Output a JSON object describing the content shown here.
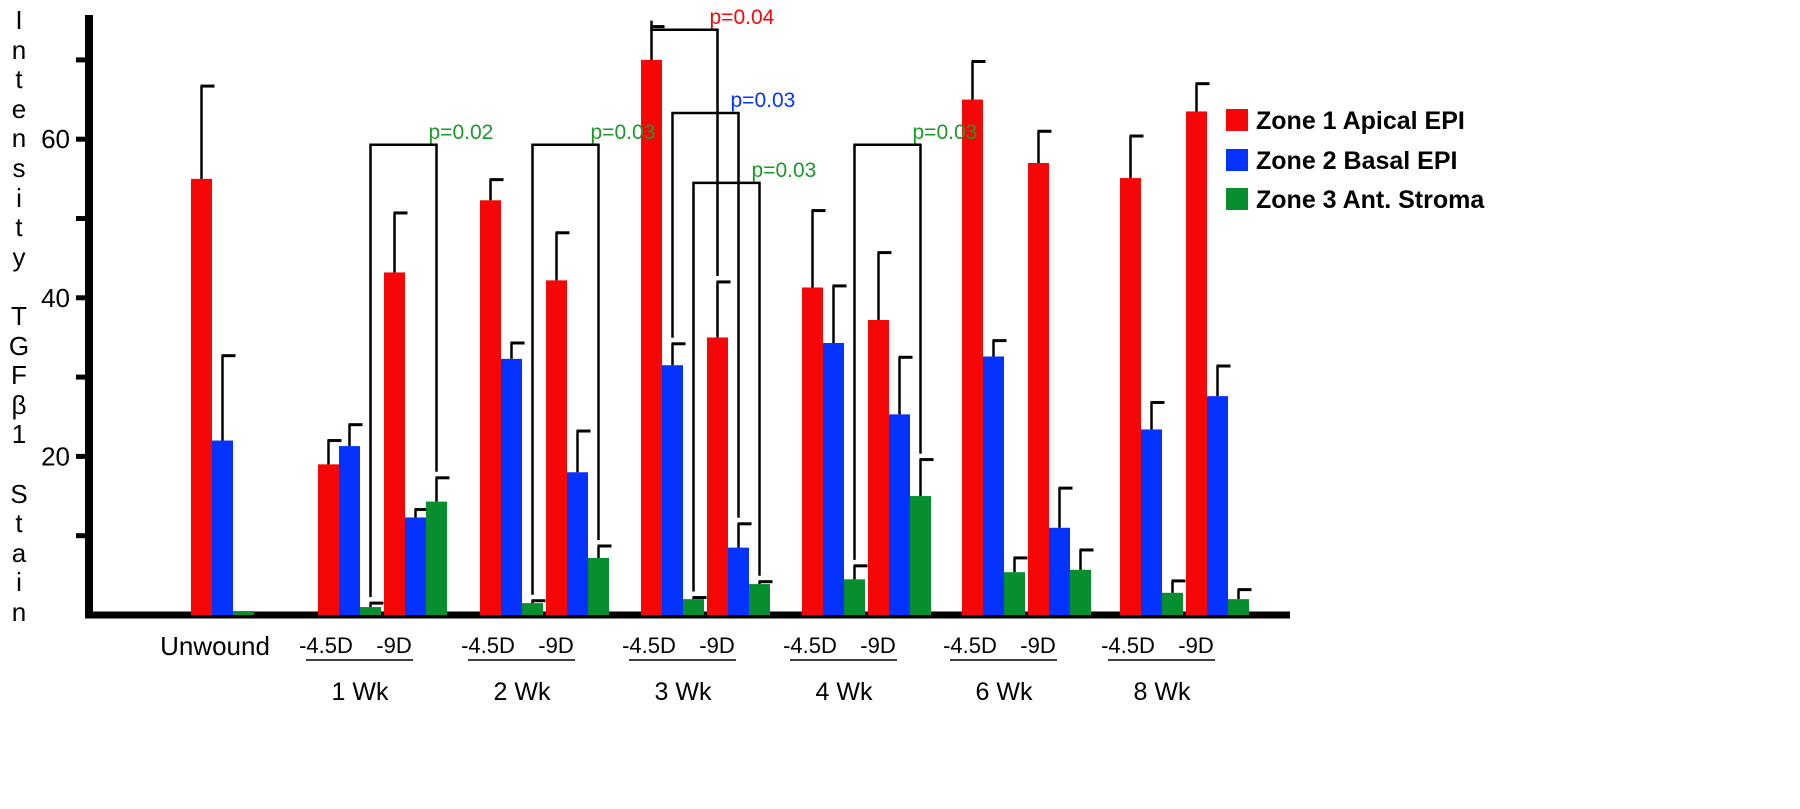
{
  "chart_data": {
    "type": "bar",
    "title": "",
    "ylabel": "Intensity TGFβ1 Stain",
    "xlabel": "",
    "ylim": [
      0,
      75
    ],
    "yticks": [
      10,
      20,
      30,
      40,
      50,
      60,
      70
    ],
    "ytick_labels": {
      "20": "20",
      "40": "40",
      "60": "60"
    },
    "grid": false,
    "legend_position": "right",
    "groups": [
      {
        "label": "Unwound",
        "sub": [
          {
            "label": ""
          }
        ]
      },
      {
        "label": "1 Wk",
        "sub": [
          {
            "label": "-4.5D"
          },
          {
            "label": "-9D"
          }
        ]
      },
      {
        "label": "2 Wk",
        "sub": [
          {
            "label": "-4.5D"
          },
          {
            "label": "-9D"
          }
        ]
      },
      {
        "label": "3 Wk",
        "sub": [
          {
            "label": "-4.5D"
          },
          {
            "label": "-9D"
          }
        ]
      },
      {
        "label": "4 Wk",
        "sub": [
          {
            "label": "-4.5D"
          },
          {
            "label": "-9D"
          }
        ]
      },
      {
        "label": "6 Wk",
        "sub": [
          {
            "label": "-4.5D"
          },
          {
            "label": "-9D"
          }
        ]
      },
      {
        "label": "8 Wk",
        "sub": [
          {
            "label": "-4.5D"
          },
          {
            "label": "-9D"
          }
        ]
      }
    ],
    "categories": [
      "Unwound",
      "1 Wk -4.5D",
      "1 Wk -9D",
      "2 Wk -4.5D",
      "2 Wk -9D",
      "3 Wk -4.5D",
      "3 Wk -9D",
      "4 Wk -4.5D",
      "4 Wk -9D",
      "6 Wk -4.5D",
      "6 Wk -9D",
      "8 Wk -4.5D",
      "8 Wk -9D"
    ],
    "series": [
      {
        "name": "Zone 1 Apical EPI",
        "color": "#f50707",
        "values": [
          55,
          19,
          43.2,
          52.3,
          42.2,
          70,
          35,
          41.3,
          37.2,
          65,
          57,
          55.1,
          63.5
        ],
        "errors": [
          11.7,
          3,
          7.5,
          2.6,
          6,
          4.2,
          7,
          9.7,
          8.5,
          4.8,
          4,
          5.3,
          3.5
        ]
      },
      {
        "name": "Zone 2 Basal EPI",
        "color": "#0433ff",
        "values": [
          22,
          21.3,
          12.3,
          32.3,
          18,
          31.5,
          8.5,
          34.3,
          25.3,
          32.6,
          11,
          23.4,
          27.6
        ],
        "errors": [
          10.7,
          2.7,
          1,
          2,
          5.2,
          2.7,
          3,
          7.2,
          7.2,
          2,
          5,
          3.4,
          3.8
        ]
      },
      {
        "name": "Zone 3 Ant. Stroma",
        "color": "#068e2f",
        "values": [
          0.5,
          1,
          14.3,
          1.5,
          7.2,
          2,
          3.9,
          4.5,
          15,
          5.4,
          5.7,
          2.8,
          2
        ],
        "errors": [
          0,
          0.5,
          3,
          0.3,
          1.5,
          0.2,
          0.3,
          1.7,
          4.6,
          1.8,
          2.5,
          1.5,
          1.2
        ]
      }
    ],
    "annotations": [
      {
        "text": "p=0.02",
        "color": "#1a9a2a",
        "series": 2,
        "from": 1,
        "to": 2,
        "level": 59.3
      },
      {
        "text": "p=0.03",
        "color": "#1a9a2a",
        "series": 2,
        "from": 3,
        "to": 4,
        "level": 59.3
      },
      {
        "text": "p=0.04",
        "color": "#f50707",
        "series": 0,
        "from": 5,
        "to": 6,
        "level": 73.8
      },
      {
        "text": "p=0.03",
        "color": "#0433ff",
        "series": 1,
        "from": 5,
        "to": 6,
        "level": 63.3
      },
      {
        "text": "p=0.03",
        "color": "#1a9a2a",
        "series": 2,
        "from": 5,
        "to": 6,
        "level": 54.5
      },
      {
        "text": "p=0.03",
        "color": "#1a9a2a",
        "series": 2,
        "from": 7,
        "to": 8,
        "level": 59.3
      }
    ]
  }
}
